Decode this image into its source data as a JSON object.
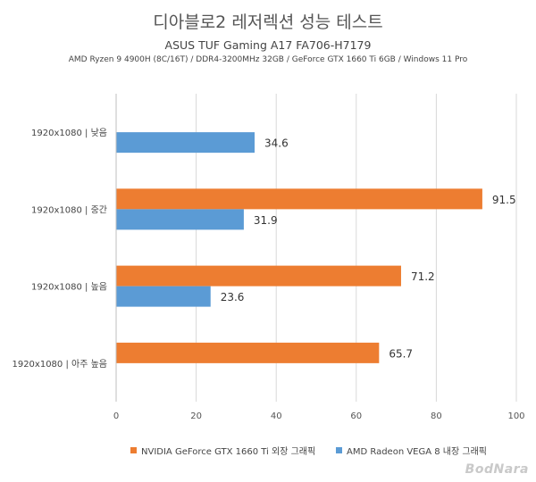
{
  "chart_data": {
    "type": "bar",
    "orientation": "horizontal",
    "title": "디아블로2 레저렉션 성능 테스트",
    "subtitle": "ASUS TUF Gaming A17 FA706-H7179",
    "subtitle2": "AMD Ryzen 9 4900H (8C/16T) / DDR4-3200MHz 32GB / GeForce GTX 1660 Ti 6GB / Windows 11 Pro",
    "categories": [
      "1920x1080 | 낮음",
      "1920x1080 | 중간",
      "1920x1080 | 높음",
      "1920x1080 | 아주 높음"
    ],
    "series": [
      {
        "name": "NVIDIA GeForce GTX 1660 Ti 외장 그래픽",
        "color": "#ed7d31",
        "values": [
          null,
          91.5,
          71.2,
          65.7
        ]
      },
      {
        "name": "AMD Radeon VEGA 8 내장 그래픽",
        "color": "#5b9bd5",
        "values": [
          34.6,
          31.9,
          23.6,
          null
        ]
      }
    ],
    "xlim": [
      0,
      100
    ],
    "xticks": [
      "0",
      "20",
      "40",
      "60",
      "80",
      "100"
    ],
    "grid": true,
    "legend_position": "bottom"
  },
  "watermark": "BodNara"
}
